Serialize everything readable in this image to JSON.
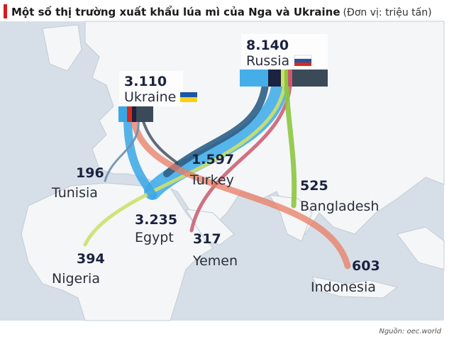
{
  "header": {
    "title": "Một số thị trường xuất khẩu lúa mì của Nga và Ukraine",
    "unit": "(Đơn vị: triệu tấn)"
  },
  "exporters": [
    {
      "value": "8.140",
      "name": "Russia"
    },
    {
      "value": "3.110",
      "name": "Ukraine"
    }
  ],
  "importers": [
    {
      "value": "196",
      "name": "Tunisia"
    },
    {
      "value": "1.597",
      "name": "Turkey"
    },
    {
      "value": "3.235",
      "name": "Egypt"
    },
    {
      "value": "317",
      "name": "Yemen"
    },
    {
      "value": "525",
      "name": "Bangladesh"
    },
    {
      "value": "394",
      "name": "Nigeria"
    },
    {
      "value": "603",
      "name": "Indonesia"
    }
  ],
  "footer": {
    "source": "Nguồn: oec.world"
  }
}
